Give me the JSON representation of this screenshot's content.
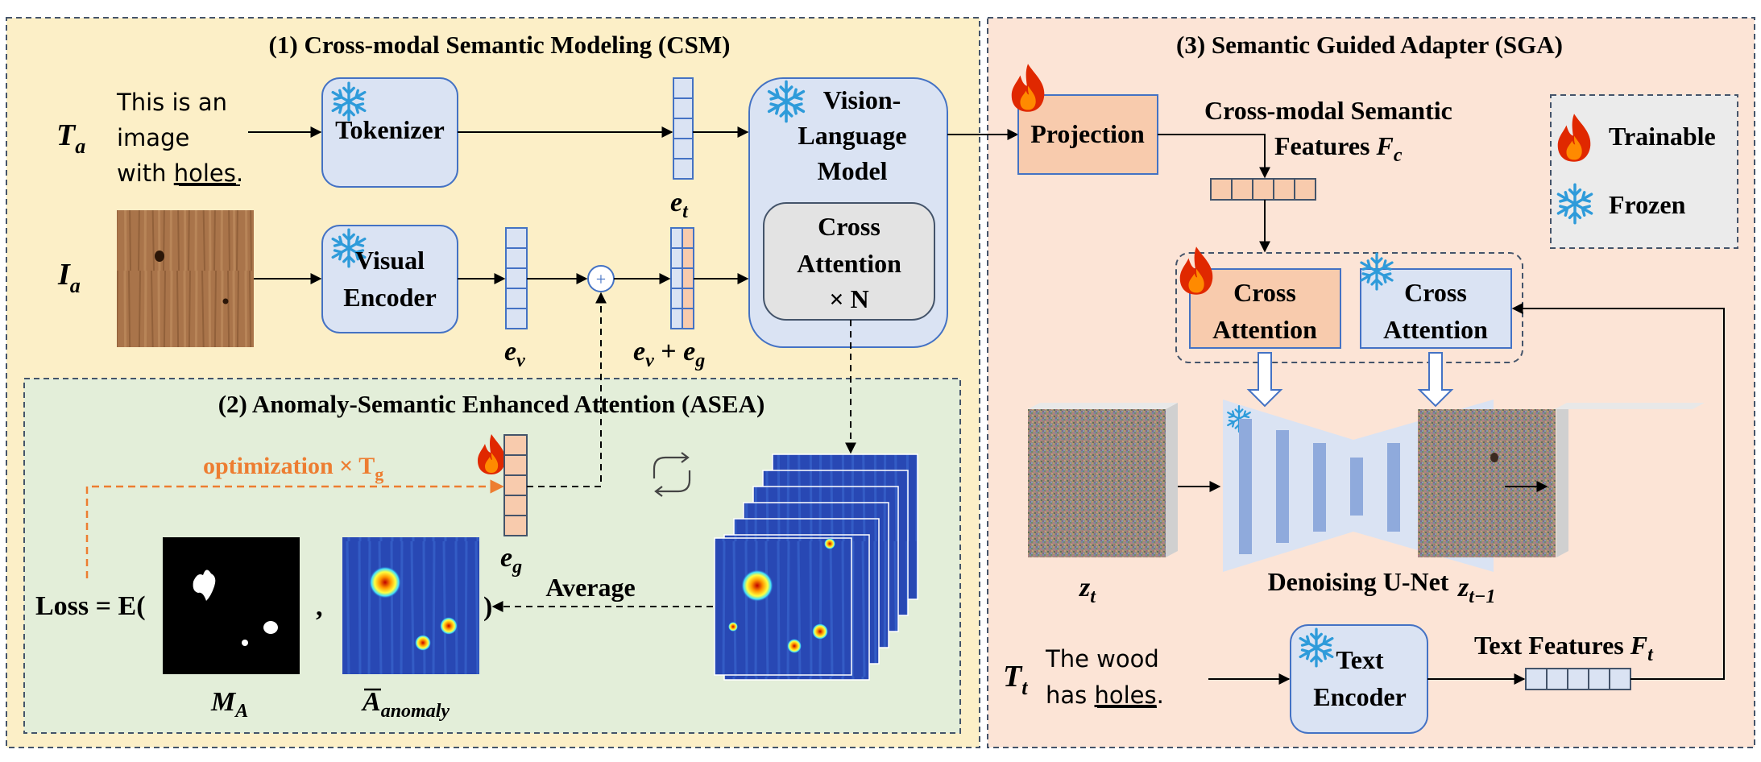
{
  "colors": {
    "csm_bg": "#fcefc7",
    "asea_bg": "#e3eed9",
    "sga_bg": "#fce4d6",
    "block_blue": "#dae3f3",
    "block_orange": "#f8cbad",
    "panel_border": "#44546a",
    "block_border": "#4472c4",
    "optim_orange": "#ed7d31",
    "flame_red": "#e02800",
    "snow_blue": "#2e9bda",
    "unet_blue": "#8faadc",
    "heat_blue": "#2040b8"
  },
  "csm": {
    "title": "(1) Cross-modal Semantic Modeling (CSM)",
    "ta_symbol": "T",
    "ta_sub": "a",
    "prompt_line1": "This is an",
    "prompt_line2": "image",
    "prompt_line3_pre": "with ",
    "prompt_line3_underline": "holes",
    "prompt_line3_post": ".",
    "ia_symbol": "I",
    "ia_sub": "a",
    "tokenizer": "Tokenizer",
    "visual_encoder_line1": "Visual",
    "visual_encoder_line2": "Encoder",
    "et_symbol": "e",
    "et_sub": "t",
    "ev_symbol": "e",
    "ev_sub": "v",
    "evg_part1": "e",
    "evg_sub1": "v",
    "evg_plus": " + ",
    "evg_part2": "e",
    "evg_sub2": "g",
    "plus_glyph": "+",
    "vlm_line1": "Vision-",
    "vlm_line2": "Language",
    "vlm_line3": "Model",
    "ca_line1": "Cross",
    "ca_line2": "Attention",
    "ca_line3": "× N"
  },
  "asea": {
    "title": "(2) Anomaly-Semantic Enhanced Attention (ASEA)",
    "optimization": "optimization × T",
    "optimization_sub": "g",
    "loss": "Loss = E(",
    "comma": ",",
    "close_paren": ")",
    "average": "Average",
    "eg_symbol": "e",
    "eg_sub": "g",
    "ma_symbol": "M",
    "ma_sub": "A",
    "abar_symbol": "A",
    "abar_sub": "anomaly",
    "loop_icon": "refresh-loop"
  },
  "sga": {
    "title": "(3) Semantic Guided Adapter (SGA)",
    "projection": "Projection",
    "fc_line1": "Cross-modal Semantic",
    "fc_line2": "Features ",
    "fc_symbol": "F",
    "fc_sub": "c",
    "ca_line1": "Cross",
    "ca_line2": "Attention",
    "unet": "Denoising U-Net",
    "zt_symbol": "z",
    "zt_sub": "t",
    "zt1_symbol": "z",
    "zt1_sub": "t−1",
    "tt_symbol": "T",
    "tt_sub": "t",
    "tt_prompt_line1": "The wood",
    "tt_prompt_line2_pre": "has ",
    "tt_prompt_line2_underline": "holes",
    "tt_prompt_line2_post": ".",
    "text_encoder_line1": "Text",
    "text_encoder_line2": "Encoder",
    "ft_label": "Text Features ",
    "ft_symbol": "F",
    "ft_sub": "t"
  },
  "legend": {
    "trainable": "Trainable",
    "frozen": "Frozen"
  }
}
